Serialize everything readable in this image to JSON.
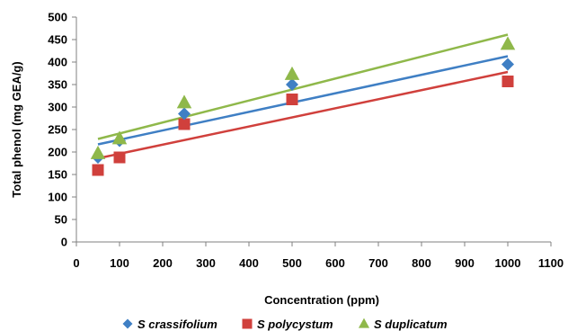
{
  "chart_data": {
    "type": "scatter",
    "xlabel": "Concentration (ppm)",
    "ylabel": "Total phenol (mg GEA/g)",
    "xlim": [
      0,
      1100
    ],
    "ylim": [
      0,
      500
    ],
    "xticks": [
      0,
      100,
      200,
      300,
      400,
      500,
      600,
      700,
      800,
      900,
      1000,
      1100
    ],
    "yticks": [
      0,
      50,
      100,
      150,
      200,
      250,
      300,
      350,
      400,
      450,
      500
    ],
    "grid": false,
    "legend_position": "bottom",
    "x": [
      50,
      100,
      250,
      500,
      1000
    ],
    "series": [
      {
        "name": "S crassifolium",
        "marker": "diamond",
        "color": "#3f7fc4",
        "values": [
          188,
          225,
          285,
          350,
          395
        ],
        "trendline": [
          [
            50,
            217
          ],
          [
            1000,
            413
          ]
        ]
      },
      {
        "name": "S polycystum",
        "marker": "square",
        "color": "#d0403c",
        "values": [
          160,
          188,
          262,
          317,
          357
        ],
        "trendline": [
          [
            50,
            186
          ],
          [
            1000,
            378
          ]
        ]
      },
      {
        "name": "S duplicatum",
        "marker": "triangle",
        "color": "#8fb84a",
        "values": [
          197,
          230,
          310,
          373,
          440
        ],
        "trendline": [
          [
            50,
            229
          ],
          [
            1000,
            461
          ]
        ]
      }
    ]
  }
}
